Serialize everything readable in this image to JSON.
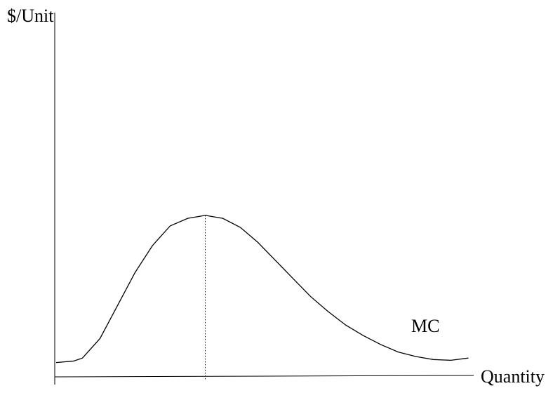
{
  "chart_data": {
    "type": "line",
    "title": "",
    "ylabel": "$/Unit",
    "xlabel": "Quantity",
    "grid": false,
    "legend": "none",
    "series": [
      {
        "name": "MC",
        "points": [
          [
            0,
            0.02
          ],
          [
            4,
            0.03
          ],
          [
            6,
            0.05
          ],
          [
            10,
            0.18
          ],
          [
            14,
            0.4
          ],
          [
            18,
            0.62
          ],
          [
            22,
            0.8
          ],
          [
            26,
            0.93
          ],
          [
            30,
            0.98
          ],
          [
            34,
            1.0
          ],
          [
            38,
            0.98
          ],
          [
            42,
            0.92
          ],
          [
            46,
            0.82
          ],
          [
            50,
            0.7
          ],
          [
            54,
            0.58
          ],
          [
            58,
            0.46
          ],
          [
            62,
            0.36
          ],
          [
            66,
            0.27
          ],
          [
            70,
            0.2
          ],
          [
            74,
            0.14
          ],
          [
            78,
            0.09
          ],
          [
            82,
            0.06
          ],
          [
            86,
            0.04
          ],
          [
            90,
            0.035
          ],
          [
            94,
            0.05
          ]
        ]
      }
    ],
    "annotations": [
      {
        "type": "vertical-dotted-line",
        "x": 34,
        "from": -0.1,
        "to": 1.0
      }
    ],
    "xlim": [
      0,
      100
    ],
    "ylim": [
      -0.08,
      2.35
    ],
    "colors": {
      "axis": "#000000",
      "curve": "#000000",
      "guide": "#000000"
    }
  }
}
